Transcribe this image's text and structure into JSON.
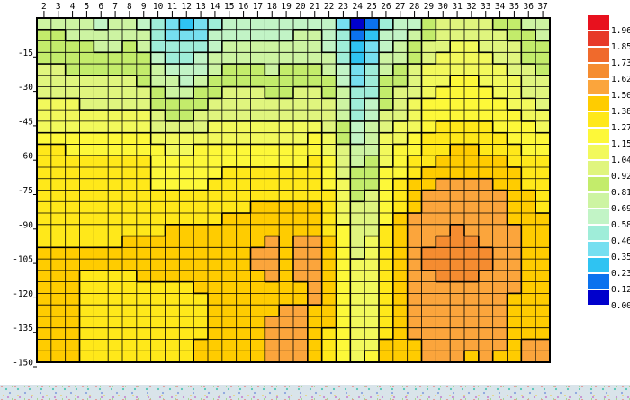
{
  "page": {
    "background": "#ffffff",
    "footer_strip_base_color": "#d9e4ea"
  },
  "chart_data": {
    "type": "heatmap",
    "title": "",
    "xlabel": "",
    "ylabel": "",
    "x_axis": {
      "position": "top",
      "tick_labels": [
        "2",
        "3",
        "4",
        "5",
        "6",
        "7",
        "8",
        "9",
        "10",
        "11",
        "12",
        "13",
        "14",
        "15",
        "16",
        "17",
        "18",
        "19",
        "20",
        "21",
        "22",
        "23",
        "24",
        "25",
        "26",
        "27",
        "28",
        "29",
        "30",
        "31",
        "32",
        "33",
        "34",
        "35",
        "36",
        "37"
      ]
    },
    "y_axis": {
      "position": "left",
      "tick_labels": [
        "-15",
        "-30",
        "-45",
        "-60",
        "-75",
        "-90",
        "-105",
        "-120",
        "-135",
        "-150"
      ],
      "range": [
        0,
        -150
      ]
    },
    "stations": [
      2,
      3,
      4,
      5,
      6,
      7,
      8,
      9,
      10,
      11,
      12,
      13,
      14,
      15,
      16,
      17,
      18,
      19,
      20,
      21,
      22,
      23,
      24,
      25,
      26,
      27,
      28,
      29,
      30,
      31,
      32,
      33,
      34,
      35,
      36,
      37
    ],
    "depths_m": [
      0,
      15,
      30,
      45,
      60,
      75,
      90,
      105,
      120,
      135,
      150
    ],
    "values": [
      [
        0.76,
        0.75,
        0.73,
        0.7,
        0.64,
        0.68,
        0.7,
        0.62,
        0.45,
        0.33,
        0.27,
        0.34,
        0.52,
        0.6,
        0.62,
        0.6,
        0.58,
        0.6,
        0.63,
        0.66,
        0.58,
        0.42,
        0.03,
        0.14,
        0.48,
        0.6,
        0.66,
        0.8,
        0.9,
        0.95,
        0.95,
        0.92,
        0.9,
        0.8,
        0.75,
        0.72
      ],
      [
        0.88,
        0.87,
        0.86,
        0.84,
        0.82,
        0.83,
        0.84,
        0.8,
        0.6,
        0.52,
        0.5,
        0.55,
        0.72,
        0.75,
        0.76,
        0.74,
        0.72,
        0.74,
        0.76,
        0.78,
        0.7,
        0.55,
        0.28,
        0.4,
        0.7,
        0.78,
        0.85,
        1.0,
        1.05,
        1.08,
        1.08,
        1.05,
        1.02,
        0.95,
        0.9,
        0.85
      ],
      [
        1.0,
        0.99,
        0.98,
        0.97,
        0.95,
        0.96,
        0.97,
        0.93,
        0.8,
        0.75,
        0.73,
        0.78,
        0.88,
        0.9,
        0.91,
        0.9,
        0.88,
        0.89,
        0.91,
        0.92,
        0.85,
        0.68,
        0.45,
        0.55,
        0.85,
        0.92,
        1.0,
        1.12,
        1.16,
        1.18,
        1.18,
        1.15,
        1.12,
        1.06,
        1.0,
        0.96
      ],
      [
        1.12,
        1.11,
        1.1,
        1.1,
        1.08,
        1.09,
        1.1,
        1.07,
        0.98,
        0.95,
        0.94,
        0.97,
        1.02,
        1.04,
        1.05,
        1.04,
        1.03,
        1.04,
        1.05,
        1.06,
        1.0,
        0.82,
        0.6,
        0.68,
        0.98,
        1.06,
        1.12,
        1.22,
        1.26,
        1.28,
        1.28,
        1.26,
        1.23,
        1.18,
        1.14,
        1.1
      ],
      [
        1.3,
        1.3,
        1.29,
        1.29,
        1.28,
        1.28,
        1.29,
        1.27,
        1.2,
        1.18,
        1.17,
        1.19,
        1.22,
        1.23,
        1.24,
        1.23,
        1.22,
        1.23,
        1.24,
        1.25,
        1.18,
        0.98,
        0.75,
        0.82,
        1.12,
        1.2,
        1.28,
        1.35,
        1.4,
        1.42,
        1.42,
        1.4,
        1.37,
        1.32,
        1.28,
        1.25
      ],
      [
        1.33,
        1.33,
        1.32,
        1.32,
        1.31,
        1.31,
        1.32,
        1.31,
        1.28,
        1.27,
        1.26,
        1.28,
        1.3,
        1.31,
        1.32,
        1.33,
        1.34,
        1.35,
        1.36,
        1.36,
        1.28,
        1.08,
        0.88,
        0.92,
        1.2,
        1.32,
        1.45,
        1.5,
        1.55,
        1.57,
        1.57,
        1.55,
        1.52,
        1.45,
        1.4,
        1.36
      ],
      [
        1.36,
        1.36,
        1.35,
        1.35,
        1.35,
        1.35,
        1.36,
        1.36,
        1.37,
        1.38,
        1.38,
        1.39,
        1.4,
        1.41,
        1.42,
        1.44,
        1.45,
        1.44,
        1.45,
        1.44,
        1.36,
        1.15,
        0.98,
        1.02,
        1.28,
        1.42,
        1.52,
        1.56,
        1.58,
        1.6,
        1.6,
        1.58,
        1.56,
        1.5,
        1.44,
        1.4
      ],
      [
        1.4,
        1.4,
        1.4,
        1.4,
        1.4,
        1.41,
        1.42,
        1.42,
        1.43,
        1.44,
        1.44,
        1.44,
        1.44,
        1.45,
        1.48,
        1.55,
        1.56,
        1.5,
        1.55,
        1.56,
        1.42,
        1.2,
        1.04,
        1.08,
        1.32,
        1.48,
        1.58,
        1.64,
        1.66,
        1.7,
        1.68,
        1.64,
        1.6,
        1.52,
        1.46,
        1.42
      ],
      [
        1.42,
        1.41,
        1.4,
        1.36,
        1.34,
        1.33,
        1.34,
        1.35,
        1.35,
        1.34,
        1.36,
        1.38,
        1.4,
        1.4,
        1.42,
        1.44,
        1.45,
        1.46,
        1.48,
        1.52,
        1.42,
        1.24,
        1.08,
        1.12,
        1.36,
        1.5,
        1.56,
        1.58,
        1.6,
        1.58,
        1.56,
        1.55,
        1.56,
        1.5,
        1.46,
        1.44
      ],
      [
        1.41,
        1.4,
        1.4,
        1.34,
        1.33,
        1.32,
        1.33,
        1.34,
        1.34,
        1.35,
        1.36,
        1.38,
        1.4,
        1.42,
        1.44,
        1.46,
        1.52,
        1.54,
        1.55,
        1.46,
        1.38,
        1.22,
        1.1,
        1.14,
        1.38,
        1.48,
        1.52,
        1.54,
        1.58,
        1.6,
        1.55,
        1.52,
        1.56,
        1.48,
        1.46,
        1.48
      ],
      [
        1.42,
        1.41,
        1.4,
        1.36,
        1.35,
        1.34,
        1.35,
        1.36,
        1.36,
        1.37,
        1.38,
        1.4,
        1.42,
        1.43,
        1.44,
        1.45,
        1.54,
        1.56,
        1.55,
        1.45,
        1.38,
        1.26,
        1.12,
        1.16,
        1.4,
        1.5,
        1.46,
        1.5,
        1.52,
        1.5,
        1.47,
        1.5,
        1.46,
        1.5,
        1.54,
        1.58
      ]
    ],
    "colorbar": {
      "position": "right",
      "labels_top_to_bottom": [
        "1.96",
        "1.85",
        "1.73",
        "1.62",
        "1.50",
        "1.38",
        "1.27",
        "1.15",
        "1.04",
        "0.92",
        "0.81",
        "0.69",
        "0.58",
        "0.46",
        "0.35",
        "0.23",
        "0.12",
        "0.00"
      ],
      "colors_top_to_bottom": [
        "#E8111E",
        "#E73A28",
        "#F06A2C",
        "#F58C30",
        "#FBA53C",
        "#FFCC00",
        "#FFE81A",
        "#FDF839",
        "#F2F95C",
        "#E0F57E",
        "#C3EC6B",
        "#CDF4A2",
        "#C2F4C6",
        "#9FEDD9",
        "#76DFF0",
        "#2FC3F2",
        "#0B72EE",
        "#0000CC"
      ],
      "min": 0.0,
      "max": 2.08,
      "band_step": 0.11529
    },
    "grid": true,
    "legend_position": "right"
  }
}
